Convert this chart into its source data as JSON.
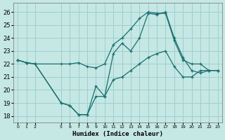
{
  "xlabel": "Humidex (Indice chaleur)",
  "background_color": "#c5e8e5",
  "grid_color": "#9ecece",
  "line_color": "#1a6e6e",
  "ylim": [
    17.5,
    26.7
  ],
  "xlim": [
    -0.5,
    23.5
  ],
  "yticks": [
    18,
    19,
    20,
    21,
    22,
    23,
    24,
    25,
    26
  ],
  "xticks": [
    0,
    1,
    2,
    5,
    6,
    7,
    8,
    9,
    10,
    11,
    12,
    13,
    14,
    15,
    16,
    17,
    18,
    19,
    20,
    21,
    22,
    23
  ],
  "line1_x": [
    0,
    1,
    2,
    5,
    6,
    7,
    8,
    9,
    10,
    11,
    12,
    13,
    14,
    15,
    16,
    17,
    18,
    19,
    20,
    21,
    22,
    23
  ],
  "line1_y": [
    22.3,
    22.1,
    22.0,
    22.0,
    22.0,
    22.1,
    21.8,
    21.7,
    22.0,
    23.5,
    24.0,
    24.7,
    25.5,
    26.0,
    25.9,
    25.9,
    23.8,
    22.3,
    22.0,
    22.0,
    21.5,
    21.5
  ],
  "line2_x": [
    0,
    1,
    2,
    5,
    6,
    7,
    8,
    9,
    10,
    11,
    12,
    13,
    14,
    15,
    16,
    17,
    18,
    19,
    20,
    21,
    22,
    23
  ],
  "line2_y": [
    22.3,
    22.1,
    22.0,
    19.0,
    18.8,
    18.1,
    18.1,
    20.3,
    19.5,
    22.8,
    23.6,
    23.0,
    24.0,
    25.9,
    25.8,
    26.0,
    24.0,
    22.5,
    21.5,
    21.3,
    21.5,
    21.5
  ],
  "line3_x": [
    0,
    1,
    2,
    5,
    6,
    7,
    8,
    9,
    10,
    11,
    12,
    13,
    14,
    15,
    16,
    17,
    18,
    19,
    20,
    21,
    22,
    23
  ],
  "line3_y": [
    22.3,
    22.1,
    22.0,
    19.0,
    18.8,
    18.1,
    18.1,
    19.5,
    19.5,
    20.8,
    21.0,
    21.5,
    22.0,
    22.5,
    22.8,
    23.0,
    21.8,
    21.0,
    21.0,
    21.5,
    21.5,
    21.5
  ]
}
